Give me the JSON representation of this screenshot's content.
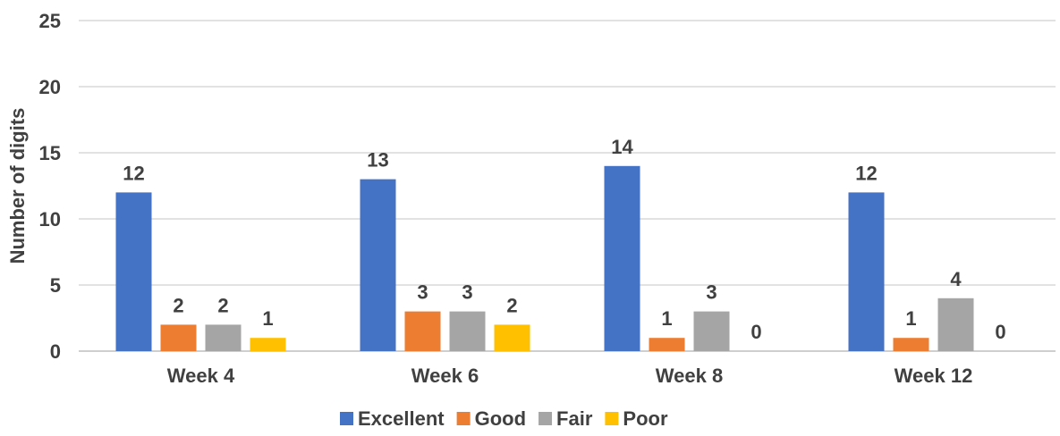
{
  "chart_data": {
    "type": "bar",
    "categories": [
      "Week 4",
      "Week 6",
      "Week 8",
      "Week 12"
    ],
    "series": [
      {
        "name": "Excellent",
        "color": "#4472C4",
        "values": [
          12,
          13,
          14,
          12
        ]
      },
      {
        "name": "Good",
        "color": "#ED7D31",
        "values": [
          2,
          3,
          1,
          1
        ]
      },
      {
        "name": "Fair",
        "color": "#A5A5A5",
        "values": [
          2,
          3,
          3,
          4
        ]
      },
      {
        "name": "Poor",
        "color": "#FFC000",
        "values": [
          1,
          2,
          0,
          0
        ]
      }
    ],
    "ylabel": "Number of digits",
    "xlabel": "",
    "ylim": [
      0,
      25
    ],
    "yticks": [
      0,
      5,
      10,
      15,
      20,
      25
    ],
    "grid": true,
    "legend": "bottom",
    "data_labels": true
  }
}
